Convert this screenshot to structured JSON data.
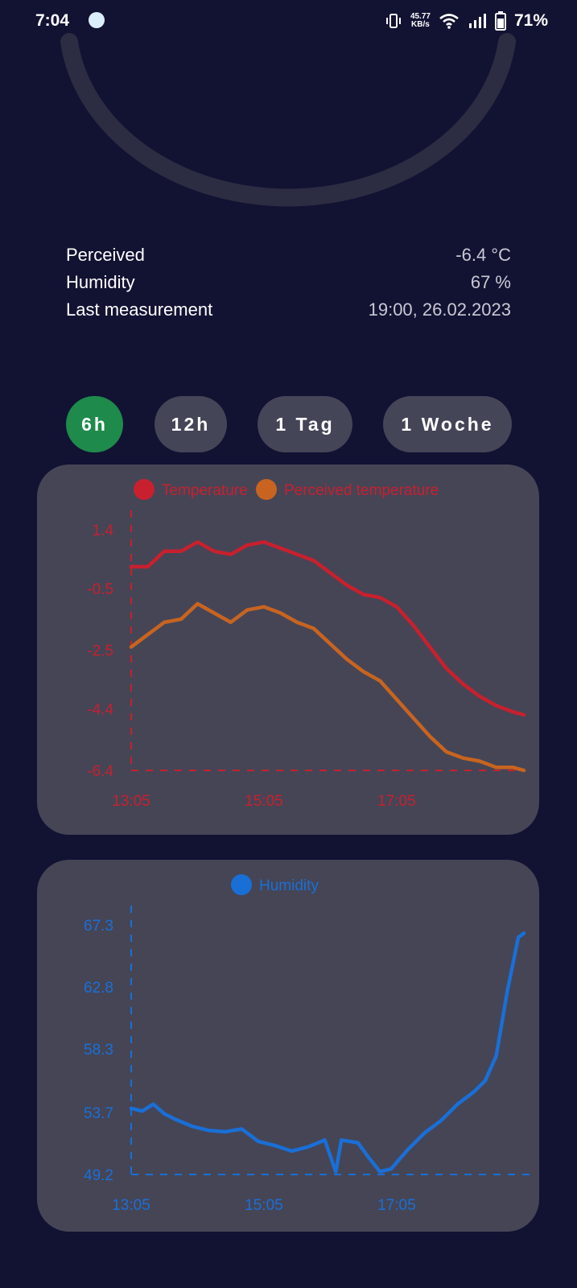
{
  "status_bar": {
    "time": "7:04",
    "net_speed_value": "45.77",
    "net_speed_unit": "KB/s",
    "battery": "71%",
    "icons": [
      "vibrate-icon",
      "wifi-icon",
      "signal-icon",
      "battery-icon"
    ]
  },
  "info": {
    "rows": [
      {
        "label": "Perceived",
        "value": "-6.4 °C"
      },
      {
        "label": "Humidity",
        "value": "67 %"
      },
      {
        "label": "Last measurement",
        "value": "19:00, 26.02.2023"
      }
    ]
  },
  "ranges": {
    "selected": "6h",
    "buttons": [
      "6h",
      "12h",
      "1 Tag",
      "1 Woche"
    ]
  },
  "colors": {
    "background": "#121233",
    "card": "#454556",
    "active_button": "#1e8a4b",
    "temperature": "#c8202e",
    "perceived": "#c8641f",
    "humidity": "#1a6fd6"
  },
  "chart_data": [
    {
      "type": "line",
      "legend": [
        "Temperature",
        "Perceived temperature"
      ],
      "x_ticks": [
        "13:05",
        "15:05",
        "17:05"
      ],
      "y_ticks": [
        "1.4",
        "-0.5",
        "-2.5",
        "-4.4",
        "-6.4"
      ],
      "ylim": [
        -6.4,
        1.4
      ],
      "x_minutes_from": "13:05",
      "series": [
        {
          "name": "Temperature",
          "x": [
            "13:05",
            "13:20",
            "13:35",
            "13:50",
            "14:05",
            "14:20",
            "14:35",
            "14:50",
            "15:05",
            "15:20",
            "15:35",
            "15:50",
            "16:05",
            "16:20",
            "16:35",
            "16:50",
            "17:05",
            "17:20",
            "17:35",
            "17:50",
            "18:05",
            "18:20",
            "18:35",
            "18:50",
            "19:00"
          ],
          "values": [
            0.2,
            0.2,
            0.7,
            0.7,
            1.0,
            0.7,
            0.6,
            0.9,
            1.0,
            0.8,
            0.6,
            0.4,
            0.0,
            -0.4,
            -0.7,
            -0.8,
            -1.1,
            -1.7,
            -2.4,
            -3.1,
            -3.6,
            -4.0,
            -4.3,
            -4.5,
            -4.6
          ]
        },
        {
          "name": "Perceived temperature",
          "x": [
            "13:05",
            "13:20",
            "13:35",
            "13:50",
            "14:05",
            "14:20",
            "14:35",
            "14:50",
            "15:05",
            "15:20",
            "15:35",
            "15:50",
            "16:05",
            "16:20",
            "16:35",
            "16:50",
            "17:05",
            "17:20",
            "17:35",
            "17:50",
            "18:05",
            "18:20",
            "18:35",
            "18:50",
            "19:00"
          ],
          "values": [
            -2.4,
            -2.0,
            -1.6,
            -1.5,
            -1.0,
            -1.3,
            -1.6,
            -1.2,
            -1.1,
            -1.3,
            -1.6,
            -1.8,
            -2.3,
            -2.8,
            -3.2,
            -3.5,
            -4.1,
            -4.7,
            -5.3,
            -5.8,
            -6.0,
            -6.1,
            -6.3,
            -6.3,
            -6.4
          ]
        }
      ]
    },
    {
      "type": "line",
      "legend": [
        "Humidity"
      ],
      "x_ticks": [
        "13:05",
        "15:05",
        "17:05"
      ],
      "y_ticks": [
        "67.3",
        "62.8",
        "58.3",
        "53.7",
        "49.2"
      ],
      "ylim": [
        49.2,
        67.3
      ],
      "series": [
        {
          "name": "Humidity",
          "x": [
            "13:05",
            "13:15",
            "13:25",
            "13:35",
            "13:45",
            "14:00",
            "14:15",
            "14:30",
            "14:45",
            "15:00",
            "15:15",
            "15:30",
            "15:45",
            "16:00",
            "16:10",
            "16:15",
            "16:30",
            "16:40",
            "16:50",
            "17:00",
            "17:15",
            "17:30",
            "17:45",
            "18:00",
            "18:15",
            "18:25",
            "18:35",
            "18:45",
            "18:55",
            "19:00"
          ],
          "values": [
            54.0,
            53.8,
            54.3,
            53.6,
            53.2,
            52.7,
            52.4,
            52.3,
            52.5,
            51.6,
            51.3,
            50.9,
            51.2,
            51.7,
            49.4,
            51.7,
            51.5,
            50.4,
            49.4,
            49.6,
            51.0,
            52.2,
            53.1,
            54.3,
            55.2,
            56.0,
            57.8,
            62.5,
            66.4,
            66.7
          ]
        }
      ]
    }
  ]
}
